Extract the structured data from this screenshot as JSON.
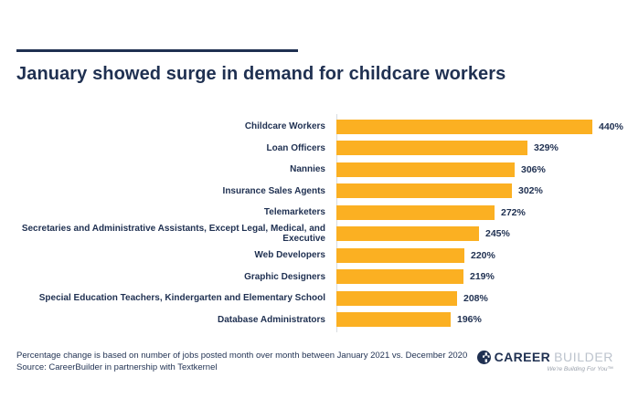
{
  "header": {
    "title": "January showed surge in demand for childcare workers",
    "accent_rule_color": "#1F3051"
  },
  "chart_data": {
    "type": "bar",
    "orientation": "horizontal",
    "title": "January showed surge in demand for childcare workers",
    "categories": [
      "Childcare Workers",
      "Loan Officers",
      "Nannies",
      "Insurance Sales Agents",
      "Telemarketers",
      "Secretaries and Administrative Assistants, Except Legal, Medical, and Executive",
      "Web Developers",
      "Graphic Designers",
      "Special Education Teachers, Kindergarten and Elementary School",
      "Database Administrators"
    ],
    "values": [
      440,
      329,
      306,
      302,
      272,
      245,
      220,
      219,
      208,
      196
    ],
    "value_suffix": "%",
    "xlabel": "",
    "ylabel": "",
    "xlim": [
      0,
      440
    ],
    "grid": "off",
    "legend": "none",
    "value_labels": "end-of-bar",
    "bar_color": "#FBB022",
    "label_color": "#1F3051",
    "axis_line_color": "#D8DCE0"
  },
  "footer": {
    "note_line1": "Percentage change is based on number of jobs posted month over month between January 2021 vs. December 2020",
    "note_line2": "Source: CareerBuilder in partnership with Textkernel",
    "logo": {
      "career": "CAREER",
      "builder": "BUILDER",
      "tagline": "We're Building For You™"
    }
  }
}
